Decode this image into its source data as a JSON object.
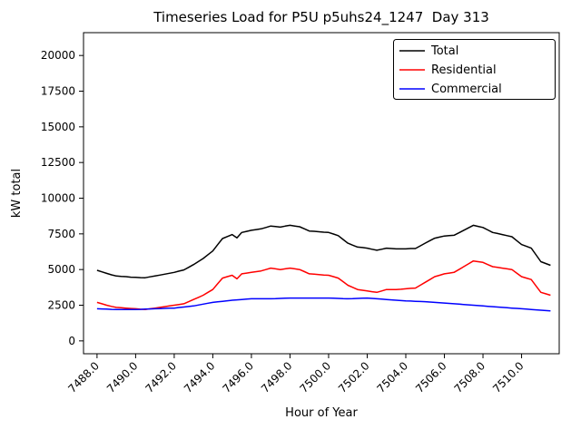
{
  "chart_data": {
    "type": "line",
    "title": "Timeseries Load for P5U p5uhs24_1247  Day 313",
    "xlabel": "Hour of Year",
    "ylabel": "kW total",
    "xlim": [
      7487.3,
      7511.95
    ],
    "ylim": [
      -900,
      21600
    ],
    "xticks": [
      7488.0,
      7490.0,
      7492.0,
      7494.0,
      7496.0,
      7498.0,
      7500.0,
      7502.0,
      7504.0,
      7506.0,
      7508.0,
      7510.0
    ],
    "yticks": [
      0,
      2500,
      5000,
      7500,
      10000,
      12500,
      15000,
      17500,
      20000
    ],
    "grid": false,
    "legend_position": "upper right",
    "x": [
      7488,
      7488.25,
      7488.5,
      7488.75,
      7489,
      7489.25,
      7489.5,
      7489.75,
      7490,
      7490.25,
      7490.5,
      7490.75,
      7491,
      7491.25,
      7491.5,
      7491.75,
      7492,
      7492.25,
      7492.5,
      7492.75,
      7493,
      7493.25,
      7493.5,
      7493.75,
      7494,
      7494.25,
      7494.5,
      7494.75,
      7495,
      7495.25,
      7495.5,
      7495.75,
      7496,
      7496.25,
      7496.5,
      7496.75,
      7497,
      7497.25,
      7497.5,
      7497.75,
      7498,
      7498.25,
      7498.5,
      7498.75,
      7499,
      7499.25,
      7499.5,
      7499.75,
      7500,
      7500.25,
      7500.5,
      7500.75,
      7501,
      7501.25,
      7501.5,
      7501.75,
      7502,
      7502.25,
      7502.5,
      7502.75,
      7503,
      7503.25,
      7503.5,
      7503.75,
      7504,
      7504.25,
      7504.5,
      7504.75,
      7505,
      7505.25,
      7505.5,
      7505.75,
      7506,
      7506.25,
      7506.5,
      7506.75,
      7507,
      7507.25,
      7507.5,
      7507.75,
      7508,
      7508.25,
      7508.5,
      7508.75,
      7509,
      7509.25,
      7509.5,
      7509.75,
      7510,
      7510.25,
      7510.5,
      7510.75,
      7511,
      7511.25,
      7511.5
    ],
    "series": [
      {
        "name": "Total",
        "color": "#000000",
        "values": [
          4950,
          4840,
          4730,
          4630,
          4550,
          4515,
          4500,
          4465,
          4450,
          4430,
          4425,
          4490,
          4550,
          4610,
          4675,
          4740,
          4800,
          4890,
          4975,
          5160,
          5350,
          5560,
          5775,
          6040,
          6300,
          6740,
          7175,
          7310,
          7450,
          7225,
          7600,
          7675,
          7750,
          7800,
          7850,
          7950,
          8050,
          8010,
          7975,
          8040,
          8100,
          8050,
          8000,
          7850,
          7700,
          7680,
          7650,
          7620,
          7600,
          7490,
          7375,
          7110,
          6850,
          6710,
          6575,
          6540,
          6500,
          6425,
          6350,
          6425,
          6500,
          6475,
          6450,
          6445,
          6450,
          6470,
          6475,
          6660,
          6850,
          7025,
          7200,
          7275,
          7350,
          7375,
          7400,
          7575,
          7750,
          7925,
          8100,
          8025,
          7950,
          7775,
          7600,
          7525,
          7450,
          7375,
          7300,
          7025,
          6750,
          6625,
          6500,
          6025,
          5550,
          5425,
          5300
        ]
      },
      {
        "name": "Residential",
        "color": "#ff0000",
        "values": [
          2700,
          2600,
          2500,
          2420,
          2350,
          2320,
          2300,
          2270,
          2250,
          2220,
          2200,
          2250,
          2300,
          2350,
          2400,
          2450,
          2500,
          2550,
          2600,
          2750,
          2900,
          3050,
          3200,
          3400,
          3600,
          4000,
          4400,
          4500,
          4600,
          4350,
          4700,
          4750,
          4800,
          4850,
          4900,
          5000,
          5100,
          5050,
          5000,
          5050,
          5100,
          5050,
          5000,
          4850,
          4700,
          4680,
          4650,
          4620,
          4600,
          4500,
          4400,
          4150,
          3900,
          3750,
          3600,
          3550,
          3500,
          3450,
          3400,
          3500,
          3600,
          3600,
          3600,
          3620,
          3650,
          3680,
          3700,
          3900,
          4100,
          4300,
          4500,
          4600,
          4700,
          4750,
          4800,
          5000,
          5200,
          5400,
          5600,
          5550,
          5500,
          5350,
          5200,
          5150,
          5100,
          5050,
          5000,
          4750,
          4500,
          4400,
          4300,
          3850,
          3400,
          3300,
          3200
        ]
      },
      {
        "name": "Commercial",
        "color": "#0000ff",
        "values": [
          2250,
          2240,
          2230,
          2210,
          2200,
          2195,
          2200,
          2195,
          2200,
          2210,
          2225,
          2240,
          2250,
          2260,
          2275,
          2290,
          2300,
          2340,
          2375,
          2410,
          2450,
          2510,
          2575,
          2640,
          2700,
          2740,
          2775,
          2810,
          2850,
          2875,
          2900,
          2925,
          2950,
          2950,
          2950,
          2950,
          2950,
          2960,
          2975,
          2990,
          3000,
          3000,
          3000,
          3000,
          3000,
          3000,
          3000,
          3000,
          3000,
          2990,
          2975,
          2960,
          2950,
          2960,
          2975,
          2990,
          3000,
          2975,
          2950,
          2925,
          2900,
          2875,
          2850,
          2825,
          2800,
          2790,
          2775,
          2760,
          2750,
          2725,
          2700,
          2675,
          2650,
          2625,
          2600,
          2575,
          2550,
          2525,
          2500,
          2475,
          2450,
          2425,
          2400,
          2375,
          2350,
          2325,
          2300,
          2275,
          2250,
          2225,
          2200,
          2175,
          2150,
          2125,
          2100
        ]
      }
    ]
  }
}
